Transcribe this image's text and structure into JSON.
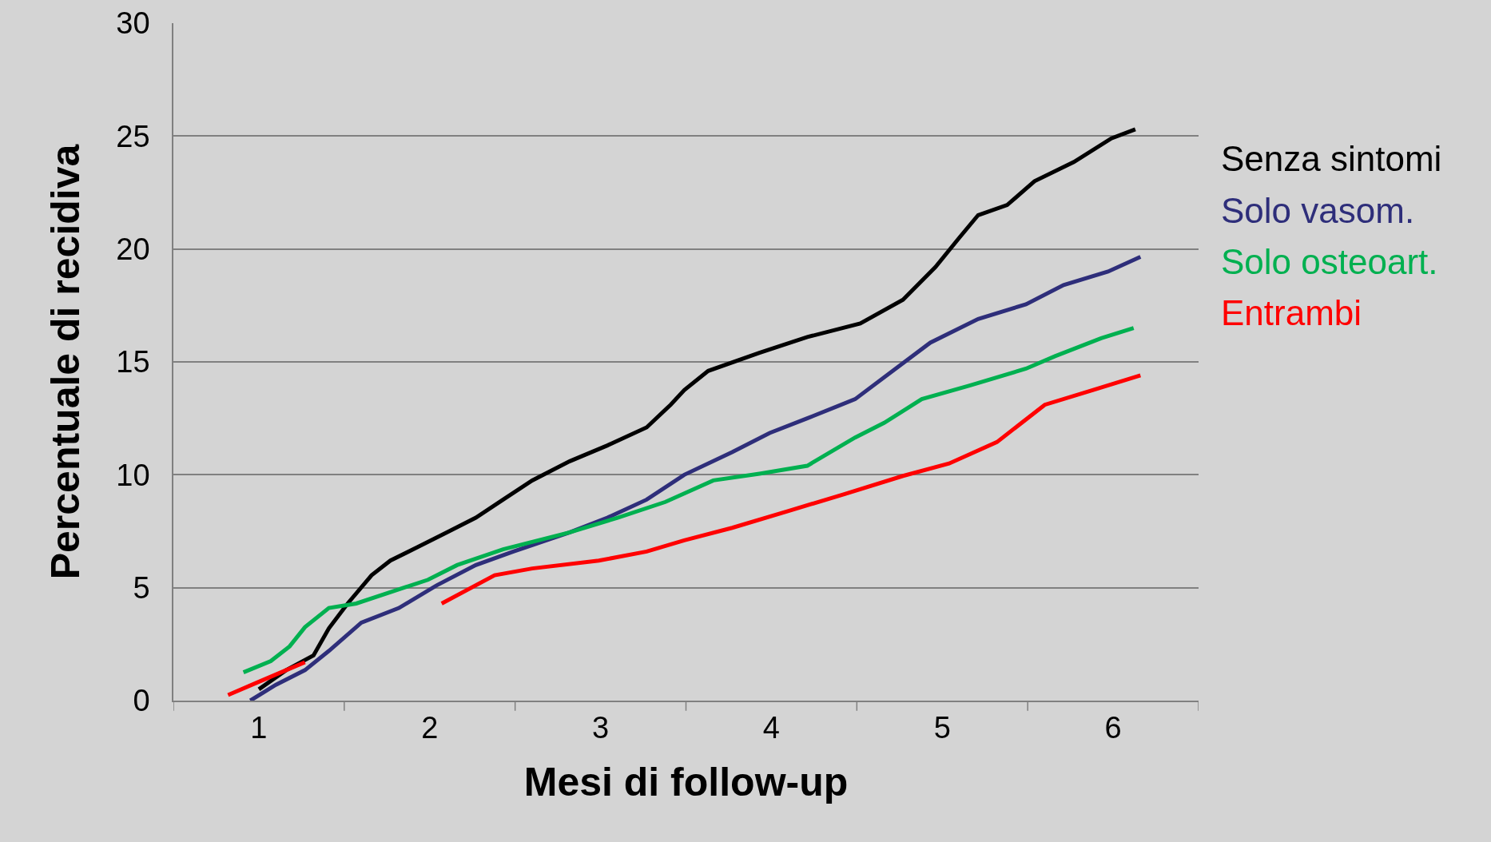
{
  "chart_data": {
    "type": "line",
    "xlabel": "Mesi di follow-up",
    "ylabel": "Percentuale di recidiva",
    "xlim": [
      0.5,
      6.5
    ],
    "ylim": [
      0,
      30
    ],
    "xticks": [
      {
        "value": 0.5,
        "label": null
      },
      1,
      {
        "value": 1.5,
        "label": null
      },
      2,
      {
        "value": 2.5,
        "label": null
      },
      3,
      {
        "value": 3.5,
        "label": null
      },
      4,
      {
        "value": 4.5,
        "label": null
      },
      5,
      {
        "value": 5.5,
        "label": null
      },
      6,
      {
        "value": 6.5,
        "label": null
      }
    ],
    "yticks": [
      0,
      5,
      10,
      15,
      20,
      25,
      30
    ],
    "grid": "y",
    "legend": "right",
    "marker": "none",
    "line_style": "solid",
    "series": [
      {
        "name": "Senza sintomi",
        "color": "#000000",
        "x": [
          1.0,
          1.16,
          1.32,
          1.41,
          1.52,
          1.66,
          1.77,
          1.93,
          2.1,
          2.27,
          2.43,
          2.6,
          2.82,
          3.04,
          3.27,
          3.41,
          3.49,
          3.63,
          3.93,
          4.21,
          4.52,
          4.77,
          4.96,
          5.1,
          5.21,
          5.38,
          5.54,
          5.77,
          5.99,
          6.13
        ],
        "values": [
          0.5,
          1.35,
          2.0,
          3.2,
          4.3,
          5.55,
          6.2,
          6.8,
          7.45,
          8.1,
          8.9,
          9.75,
          10.6,
          11.3,
          12.1,
          13.1,
          13.75,
          14.6,
          15.4,
          16.1,
          16.7,
          17.75,
          19.2,
          20.5,
          21.5,
          21.95,
          23.0,
          23.85,
          24.9,
          25.3
        ]
      },
      {
        "name": "Solo vasom.",
        "color": "#2e2e7a",
        "x": [
          0.95,
          1.1,
          1.27,
          1.41,
          1.6,
          1.82,
          2.04,
          2.27,
          2.49,
          2.82,
          3.04,
          3.27,
          3.49,
          3.77,
          3.99,
          4.21,
          4.49,
          4.71,
          4.93,
          5.21,
          5.49,
          5.71,
          5.97,
          6.16
        ],
        "values": [
          0,
          0.7,
          1.35,
          2.2,
          3.45,
          4.1,
          5.1,
          6.0,
          6.6,
          7.45,
          8.1,
          8.9,
          10.0,
          11.0,
          11.85,
          12.5,
          13.35,
          14.6,
          15.85,
          16.9,
          17.55,
          18.4,
          19.0,
          19.65
        ]
      },
      {
        "name": "Solo osteoart.",
        "color": "#00b050",
        "x": [
          0.91,
          1.07,
          1.18,
          1.27,
          1.41,
          1.57,
          1.99,
          2.16,
          2.43,
          2.82,
          3.1,
          3.38,
          3.66,
          3.93,
          4.21,
          4.49,
          4.66,
          4.88,
          5.16,
          5.49,
          5.66,
          5.93,
          6.12
        ],
        "values": [
          1.25,
          1.75,
          2.4,
          3.25,
          4.1,
          4.3,
          5.35,
          6.0,
          6.7,
          7.45,
          8.1,
          8.8,
          9.75,
          10.05,
          10.4,
          11.65,
          12.3,
          13.35,
          13.95,
          14.7,
          15.25,
          16.05,
          16.5
        ]
      },
      {
        "name": "Entrambi",
        "color": "#ff0000",
        "x": [
          0.82,
          0.99,
          1.16,
          1.27,
          1.7,
          2.07,
          2.38,
          2.6,
          2.99,
          3.27,
          3.49,
          3.77,
          4.1,
          4.43,
          4.77,
          5.04,
          5.32,
          5.6,
          5.88,
          6.16
        ],
        "values": [
          0.25,
          0.8,
          1.35,
          1.7,
          null,
          4.3,
          5.55,
          5.85,
          6.2,
          6.6,
          7.1,
          7.65,
          8.4,
          9.15,
          9.95,
          10.5,
          11.45,
          13.1,
          13.75,
          14.4
        ]
      }
    ]
  }
}
